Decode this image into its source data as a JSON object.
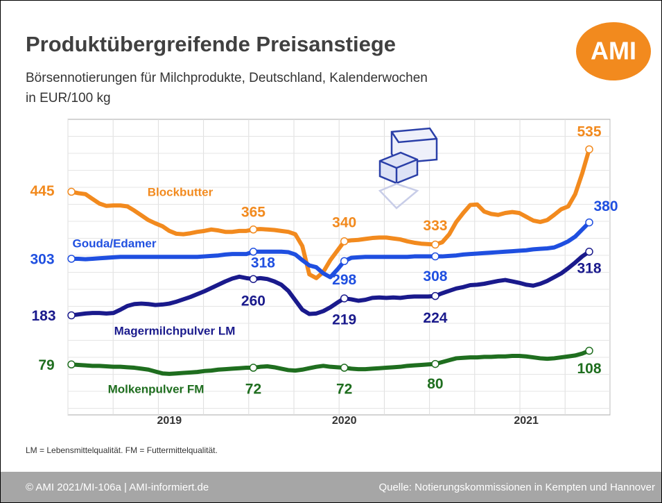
{
  "header": {
    "title": "Produktübergreifende Preisanstiege",
    "subtitle": [
      "Börsennotierungen für Milchprodukte, Deutschland, Kalenderwochen",
      "in EUR/100 kg"
    ],
    "logo": "AMI"
  },
  "chart_data": {
    "type": "line",
    "categories": [
      null,
      null,
      null,
      null,
      null,
      null,
      null,
      null,
      null,
      null,
      null,
      null,
      null,
      null,
      "2019",
      null,
      null,
      null,
      null,
      null,
      null,
      null,
      null,
      null,
      null,
      null,
      null,
      null,
      null,
      null,
      null,
      null,
      null,
      null,
      null,
      null,
      null,
      null,
      null,
      "2020",
      null,
      null,
      null,
      null,
      null,
      null,
      null,
      null,
      null,
      null,
      null,
      null,
      null,
      null,
      null,
      null,
      null,
      null,
      null,
      null,
      null,
      null,
      null,
      null,
      null,
      "2021",
      null,
      null,
      null,
      null,
      null,
      null,
      null,
      null,
      null
    ],
    "ylim": [
      0,
      600
    ],
    "series": [
      {
        "name": "Blockbutter",
        "color": "#f28a1e",
        "values": [
          445,
          442,
          440,
          430,
          420,
          415,
          416,
          416,
          414,
          405,
          395,
          385,
          378,
          372,
          362,
          356,
          355,
          357,
          360,
          362,
          365,
          363,
          360,
          360,
          362,
          362,
          365,
          366,
          365,
          364,
          362,
          360,
          355,
          330,
          270,
          262,
          275,
          300,
          320,
          340,
          342,
          343,
          345,
          347,
          348,
          348,
          346,
          344,
          340,
          337,
          335,
          334,
          333,
          338,
          355,
          381,
          400,
          417,
          418,
          403,
          398,
          396,
          400,
          402,
          400,
          392,
          384,
          381,
          385,
          396,
          408,
          414,
          440,
          484,
          535
        ],
        "value_labels": [
          "445",
          null,
          null,
          null,
          null,
          null,
          null,
          null,
          null,
          null,
          null,
          null,
          null,
          null,
          null,
          null,
          null,
          null,
          null,
          null,
          null,
          null,
          null,
          null,
          null,
          null,
          "365",
          null,
          null,
          null,
          null,
          null,
          null,
          null,
          null,
          null,
          null,
          null,
          null,
          "340",
          null,
          null,
          null,
          null,
          null,
          null,
          null,
          null,
          null,
          null,
          null,
          null,
          "333",
          null,
          null,
          null,
          null,
          null,
          null,
          null,
          null,
          null,
          null,
          null,
          null,
          null,
          null,
          null,
          null,
          null,
          null,
          null,
          null,
          null,
          "535"
        ]
      },
      {
        "name": "Gouda/Edamer",
        "color": "#1f4fe0",
        "values": [
          303,
          303,
          302,
          303,
          304,
          305,
          306,
          307,
          307,
          307,
          307,
          307,
          307,
          307,
          307,
          307,
          307,
          307,
          307,
          308,
          309,
          310,
          312,
          313,
          313,
          313,
          318,
          318,
          318,
          318,
          318,
          317,
          312,
          300,
          289,
          285,
          272,
          264,
          280,
          298,
          305,
          306,
          307,
          307,
          307,
          307,
          307,
          307,
          307,
          308,
          308,
          308,
          308,
          308,
          309,
          310,
          312,
          313,
          314,
          315,
          316,
          317,
          318,
          319,
          320,
          321,
          323,
          324,
          325,
          327,
          333,
          340,
          350,
          365,
          380
        ],
        "value_labels": [
          "303",
          null,
          null,
          null,
          null,
          null,
          null,
          null,
          null,
          null,
          null,
          null,
          null,
          null,
          null,
          null,
          null,
          null,
          null,
          null,
          null,
          null,
          null,
          null,
          null,
          null,
          "318",
          null,
          null,
          null,
          null,
          null,
          null,
          null,
          null,
          null,
          null,
          null,
          null,
          "298",
          null,
          null,
          null,
          null,
          null,
          null,
          null,
          null,
          null,
          null,
          null,
          null,
          "308",
          null,
          null,
          null,
          null,
          null,
          null,
          null,
          null,
          null,
          null,
          null,
          null,
          null,
          null,
          null,
          null,
          null,
          null,
          null,
          null,
          null,
          "380"
        ]
      },
      {
        "name": "Magermilchpulver LM",
        "color": "#1a1a8c",
        "values": [
          183,
          185,
          187,
          188,
          188,
          187,
          188,
          195,
          203,
          207,
          208,
          207,
          205,
          206,
          208,
          212,
          217,
          222,
          228,
          234,
          241,
          248,
          255,
          261,
          265,
          262,
          260,
          262,
          260,
          255,
          248,
          235,
          215,
          195,
          186,
          187,
          192,
          200,
          210,
          219,
          217,
          214,
          216,
          220,
          221,
          220,
          221,
          220,
          222,
          223,
          223,
          223,
          224,
          230,
          235,
          240,
          243,
          247,
          248,
          250,
          253,
          256,
          258,
          255,
          252,
          248,
          246,
          250,
          256,
          264,
          272,
          283,
          295,
          308,
          318
        ],
        "value_labels": [
          "183",
          null,
          null,
          null,
          null,
          null,
          null,
          null,
          null,
          null,
          null,
          null,
          null,
          null,
          null,
          null,
          null,
          null,
          null,
          null,
          null,
          null,
          null,
          null,
          null,
          null,
          "260",
          null,
          null,
          null,
          null,
          null,
          null,
          null,
          null,
          null,
          null,
          null,
          null,
          "219",
          null,
          null,
          null,
          null,
          null,
          null,
          null,
          null,
          null,
          null,
          null,
          null,
          "224",
          null,
          null,
          null,
          null,
          null,
          null,
          null,
          null,
          null,
          null,
          null,
          null,
          null,
          null,
          null,
          null,
          null,
          null,
          null,
          null,
          null,
          "318"
        ]
      },
      {
        "name": "Molkenpulver FM",
        "color": "#1f6e1f",
        "values": [
          79,
          78,
          77,
          76,
          76,
          75,
          74,
          74,
          73,
          72,
          70,
          68,
          64,
          60,
          59,
          60,
          61,
          62,
          63,
          65,
          66,
          68,
          69,
          70,
          71,
          72,
          72,
          74,
          75,
          73,
          70,
          67,
          66,
          68,
          71,
          74,
          76,
          74,
          73,
          72,
          70,
          69,
          69,
          70,
          71,
          72,
          73,
          74,
          76,
          77,
          78,
          79,
          80,
          84,
          88,
          92,
          93,
          94,
          94,
          95,
          95,
          96,
          96,
          97,
          97,
          96,
          94,
          92,
          91,
          92,
          94,
          96,
          98,
          102,
          108
        ],
        "value_labels": [
          "79",
          null,
          null,
          null,
          null,
          null,
          null,
          null,
          null,
          null,
          null,
          null,
          null,
          null,
          null,
          null,
          null,
          null,
          null,
          null,
          null,
          null,
          null,
          null,
          null,
          null,
          "72",
          null,
          null,
          null,
          null,
          null,
          null,
          null,
          null,
          null,
          null,
          null,
          null,
          "72",
          null,
          null,
          null,
          null,
          null,
          null,
          null,
          null,
          null,
          null,
          null,
          null,
          "80",
          null,
          null,
          null,
          null,
          null,
          null,
          null,
          null,
          null,
          null,
          null,
          null,
          null,
          null,
          null,
          null,
          null,
          null,
          null,
          null,
          null,
          "108"
        ]
      }
    ]
  },
  "note": "LM = Lebensmittelqualität. FM = Futtermittelqualität.",
  "footer": {
    "left": "© AMI 2021/MI-106a | AMI-informiert.de",
    "right": "Quelle: Notierungskommissionen in Kempten und Hannover"
  }
}
